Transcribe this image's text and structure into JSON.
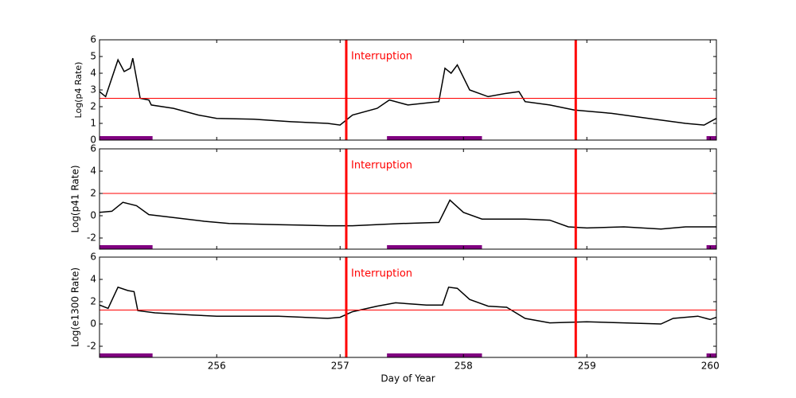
{
  "chart_data": [
    {
      "type": "line",
      "ylabel": "Log(p4 Rate)",
      "color": "#000000",
      "xlim": [
        255.05,
        260.05
      ],
      "ylim": [
        0,
        6
      ],
      "yticks": [
        0,
        1,
        2,
        3,
        4,
        5,
        6
      ],
      "x": [
        255.05,
        255.1,
        255.2,
        255.25,
        255.3,
        255.32,
        255.38,
        255.45,
        255.47,
        255.65,
        255.85,
        256.0,
        256.3,
        256.6,
        256.9,
        257.0,
        257.1,
        257.3,
        257.4,
        257.55,
        257.8,
        257.85,
        257.9,
        257.95,
        258.05,
        258.2,
        258.35,
        258.45,
        258.5,
        258.7,
        258.9,
        259.2,
        259.5,
        259.8,
        259.95,
        260.05
      ],
      "values": [
        2.9,
        2.6,
        4.8,
        4.1,
        4.3,
        4.9,
        2.5,
        2.4,
        2.1,
        1.9,
        1.5,
        1.3,
        1.25,
        1.1,
        1.0,
        0.9,
        1.5,
        1.9,
        2.4,
        2.1,
        2.3,
        4.3,
        4.0,
        4.5,
        3.0,
        2.6,
        2.8,
        2.9,
        2.3,
        2.1,
        1.8,
        1.6,
        1.3,
        1.0,
        0.9,
        1.3
      ],
      "threshold": 2.5,
      "threshold_color": "#ff0000",
      "vlines": [
        257.05,
        258.91
      ],
      "vline_color": "#ff0000",
      "annotation": "Interruption",
      "spans": [
        [
          255.05,
          255.48
        ],
        [
          257.38,
          258.15
        ],
        [
          259.97,
          260.05
        ]
      ],
      "span_color": "#800080"
    },
    {
      "type": "line",
      "ylabel": "Log(p41 Rate)",
      "color": "#000000",
      "xlim": [
        255.05,
        260.05
      ],
      "ylim": [
        -3,
        6
      ],
      "yticks": [
        -2,
        0,
        2,
        4,
        6
      ],
      "x": [
        255.05,
        255.15,
        255.24,
        255.35,
        255.45,
        255.6,
        255.9,
        256.1,
        256.5,
        256.9,
        257.1,
        257.5,
        257.8,
        257.85,
        257.89,
        258.0,
        258.15,
        258.5,
        258.7,
        258.85,
        259.0,
        259.3,
        259.6,
        259.8,
        260.05
      ],
      "values": [
        0.3,
        0.4,
        1.2,
        0.9,
        0.1,
        -0.1,
        -0.5,
        -0.7,
        -0.8,
        -0.9,
        -0.9,
        -0.7,
        -0.6,
        0.5,
        1.4,
        0.3,
        -0.3,
        -0.3,
        -0.4,
        -1.0,
        -1.1,
        -1.0,
        -1.2,
        -1.0,
        -1.0
      ],
      "threshold": 2,
      "threshold_color": "#ff0000",
      "vlines": [
        257.05,
        258.91
      ],
      "vline_color": "#ff0000",
      "annotation": "Interruption",
      "spans": [
        [
          255.05,
          255.48
        ],
        [
          257.38,
          258.15
        ],
        [
          259.97,
          260.05
        ]
      ],
      "span_color": "#800080"
    },
    {
      "type": "line",
      "ylabel": "Log(e1300 Rate)",
      "xlabel": "Day of Year",
      "color": "#000000",
      "xlim": [
        255.05,
        260.05
      ],
      "ylim": [
        -3,
        6
      ],
      "yticks": [
        -2,
        0,
        2,
        4,
        6
      ],
      "xticks": [
        256,
        257,
        258,
        259,
        260
      ],
      "x": [
        255.05,
        255.12,
        255.2,
        255.28,
        255.33,
        255.36,
        255.5,
        255.8,
        256.0,
        256.5,
        256.9,
        257.0,
        257.1,
        257.3,
        257.45,
        257.7,
        257.83,
        257.88,
        257.95,
        258.05,
        258.2,
        258.35,
        258.5,
        258.7,
        259.0,
        259.3,
        259.6,
        259.7,
        259.9,
        260.0,
        260.05
      ],
      "values": [
        1.7,
        1.4,
        3.3,
        3.0,
        2.9,
        1.2,
        1.0,
        0.8,
        0.7,
        0.7,
        0.5,
        0.6,
        1.1,
        1.6,
        1.9,
        1.7,
        1.7,
        3.3,
        3.2,
        2.2,
        1.6,
        1.5,
        0.5,
        0.1,
        0.2,
        0.1,
        0.0,
        0.5,
        0.7,
        0.4,
        0.6
      ],
      "threshold": 1.25,
      "threshold_color": "#ff0000",
      "vlines": [
        257.05,
        258.91
      ],
      "vline_color": "#ff0000",
      "annotation": "Interruption",
      "spans": [
        [
          255.05,
          255.48
        ],
        [
          257.38,
          258.15
        ],
        [
          259.97,
          260.05
        ]
      ],
      "span_color": "#800080"
    }
  ]
}
